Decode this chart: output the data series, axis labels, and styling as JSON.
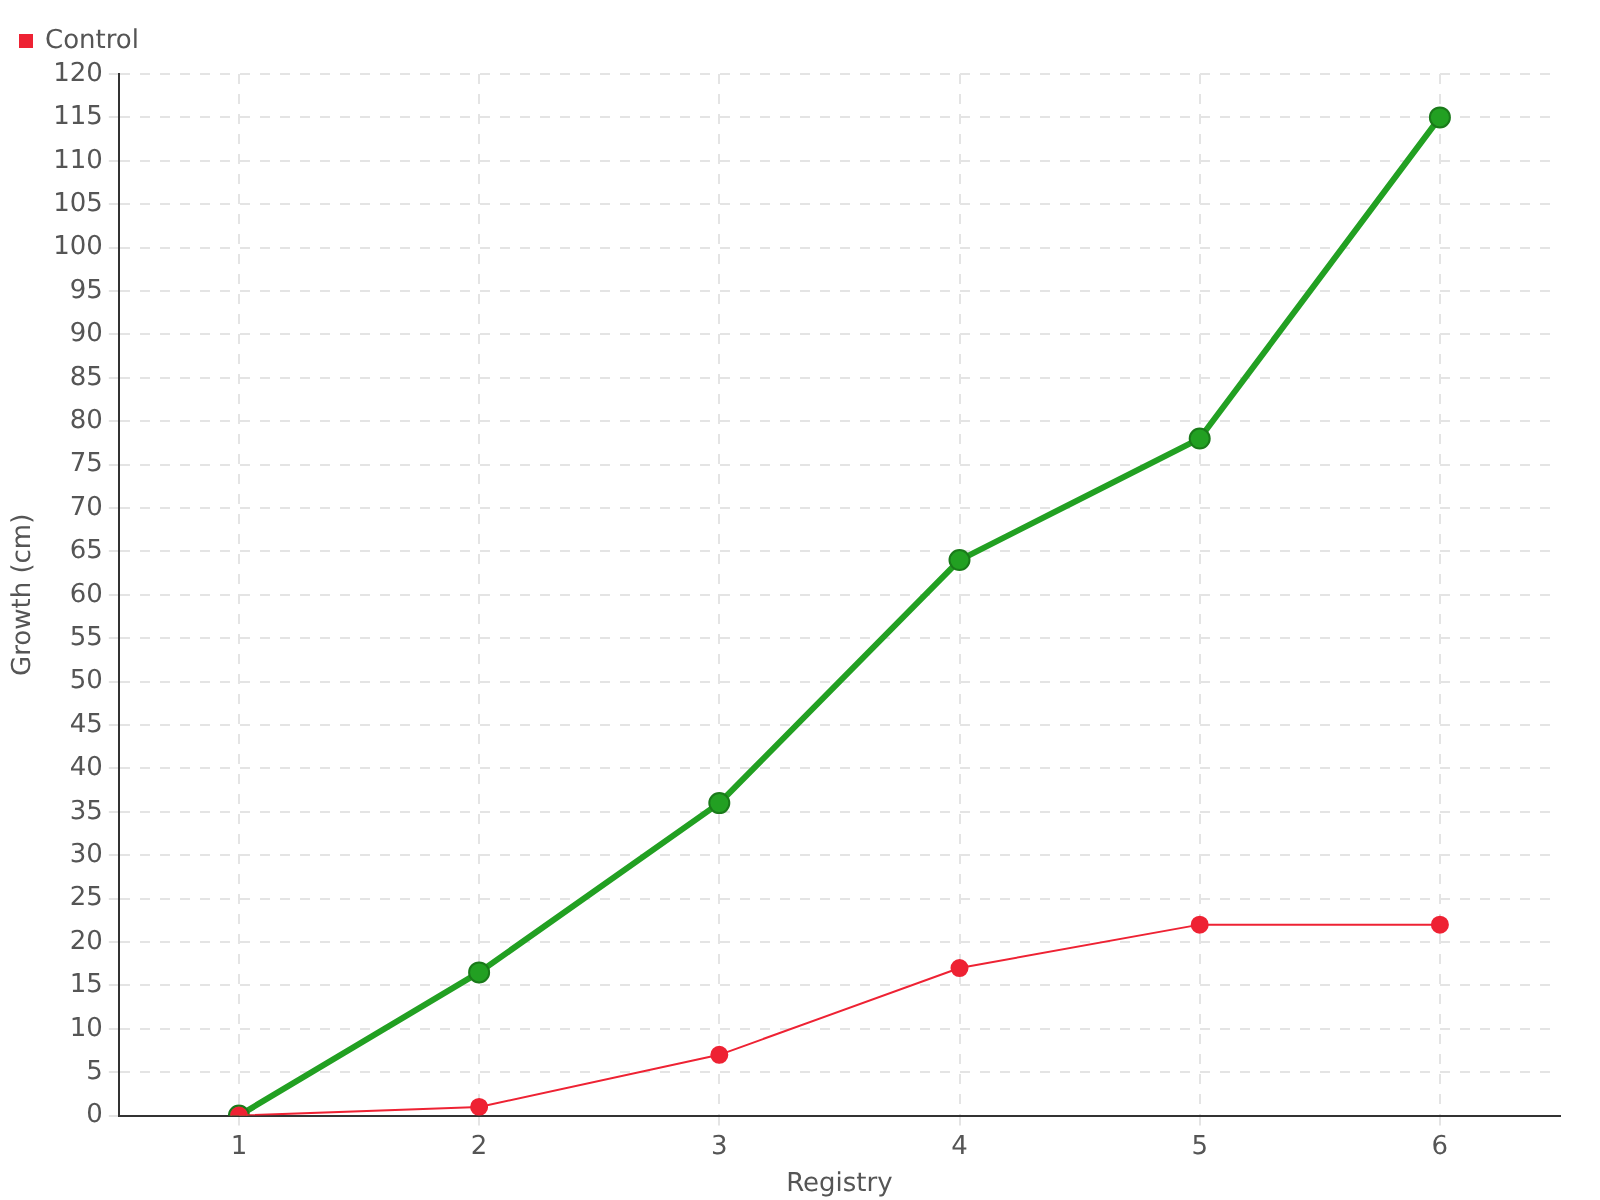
{
  "chart_data": {
    "type": "line",
    "xlabel": "Registry",
    "ylabel": "Growth (cm)",
    "categories": [
      "1",
      "2",
      "3",
      "4",
      "5",
      "6"
    ],
    "series": [
      {
        "color": "#22a022",
        "values": [
          0,
          16.5,
          36,
          64,
          78,
          115
        ]
      },
      {
        "name": "Control",
        "color": "#ee2233",
        "values": [
          0,
          1,
          7,
          17,
          22,
          22
        ]
      }
    ],
    "ylim": [
      0,
      120
    ],
    "yticks": [
      0,
      5,
      10,
      15,
      20,
      25,
      30,
      35,
      40,
      45,
      50,
      55,
      60,
      65,
      70,
      75,
      80,
      85,
      90,
      95,
      100,
      105,
      110,
      115,
      120
    ],
    "grid": true,
    "legend": "top left",
    "marker": "circle",
    "line_style": "solid"
  }
}
